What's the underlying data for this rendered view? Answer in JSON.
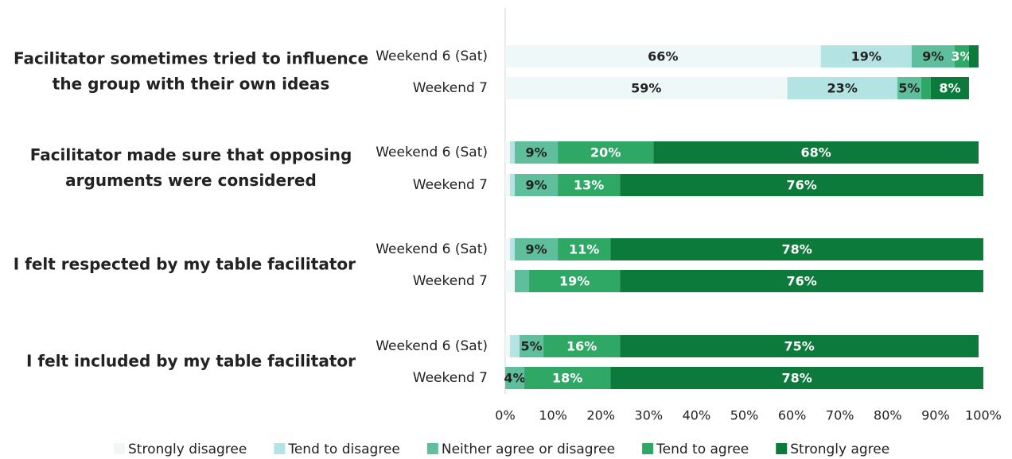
{
  "chart_data": {
    "type": "stacked-bar-horizontal",
    "group_labels": [
      [
        "Facilitator sometimes tried to influence",
        "the group with their own ideas"
      ],
      [
        "Facilitator made sure that opposing",
        "arguments were considered"
      ],
      [
        "I felt respected by my table facilitator"
      ],
      [
        "I felt included by my table facilitator"
      ]
    ],
    "categories": [
      "Weekend 6 (Sat)",
      "Weekend 7",
      "Weekend 6 (Sat)",
      "Weekend 7",
      "Weekend 6 (Sat)",
      "Weekend 7",
      "Weekend 6 (Sat)",
      "Weekend 7"
    ],
    "series": [
      {
        "name": "Strongly disagree",
        "color": "#eef8f8",
        "label_color": "#222222",
        "values": [
          66,
          59,
          1,
          1,
          1,
          2,
          1,
          0
        ],
        "value_labels": [
          "66%",
          "59%",
          null,
          null,
          null,
          null,
          null,
          null
        ]
      },
      {
        "name": "Tend to disagree",
        "color": "#b3e3e3",
        "label_color": "#222222",
        "values": [
          19,
          23,
          1,
          1,
          1,
          0,
          2,
          0
        ],
        "value_labels": [
          "19%",
          "23%",
          null,
          null,
          null,
          null,
          null,
          null
        ]
      },
      {
        "name": "Neither agree or disagree",
        "color": "#5fbf9c",
        "label_color": "#222222",
        "values": [
          9,
          5,
          9,
          9,
          9,
          3,
          5,
          4
        ],
        "value_labels": [
          "9%",
          "5%",
          "9%",
          "9%",
          "9%",
          null,
          "5%",
          "4%"
        ]
      },
      {
        "name": "Tend to agree",
        "color": "#2fa765",
        "label_color": "#ffffff",
        "values": [
          3,
          2,
          20,
          13,
          11,
          19,
          16,
          18
        ],
        "value_labels": [
          "3%",
          null,
          "20%",
          "13%",
          "11%",
          "19%",
          "16%",
          "18%"
        ]
      },
      {
        "name": "Strongly agree",
        "color": "#0b7a3a",
        "label_color": "#ffffff",
        "values": [
          2,
          8,
          68,
          76,
          78,
          76,
          75,
          78
        ],
        "value_labels": [
          null,
          "8%",
          "68%",
          "76%",
          "78%",
          "76%",
          "75%",
          "78%"
        ]
      }
    ],
    "xlim": [
      0,
      100
    ],
    "xticks": [
      {
        "value": 0,
        "label": "0%"
      },
      {
        "value": 10,
        "label": "10%"
      },
      {
        "value": 20,
        "label": "20%"
      },
      {
        "value": 30,
        "label": "30%"
      },
      {
        "value": 40,
        "label": "40%"
      },
      {
        "value": 50,
        "label": "50%"
      },
      {
        "value": 60,
        "label": "60%"
      },
      {
        "value": 70,
        "label": "70%"
      },
      {
        "value": 80,
        "label": "80%"
      },
      {
        "value": 90,
        "label": "90%"
      },
      {
        "value": 100,
        "label": "100%"
      }
    ],
    "legend": "bottom"
  }
}
